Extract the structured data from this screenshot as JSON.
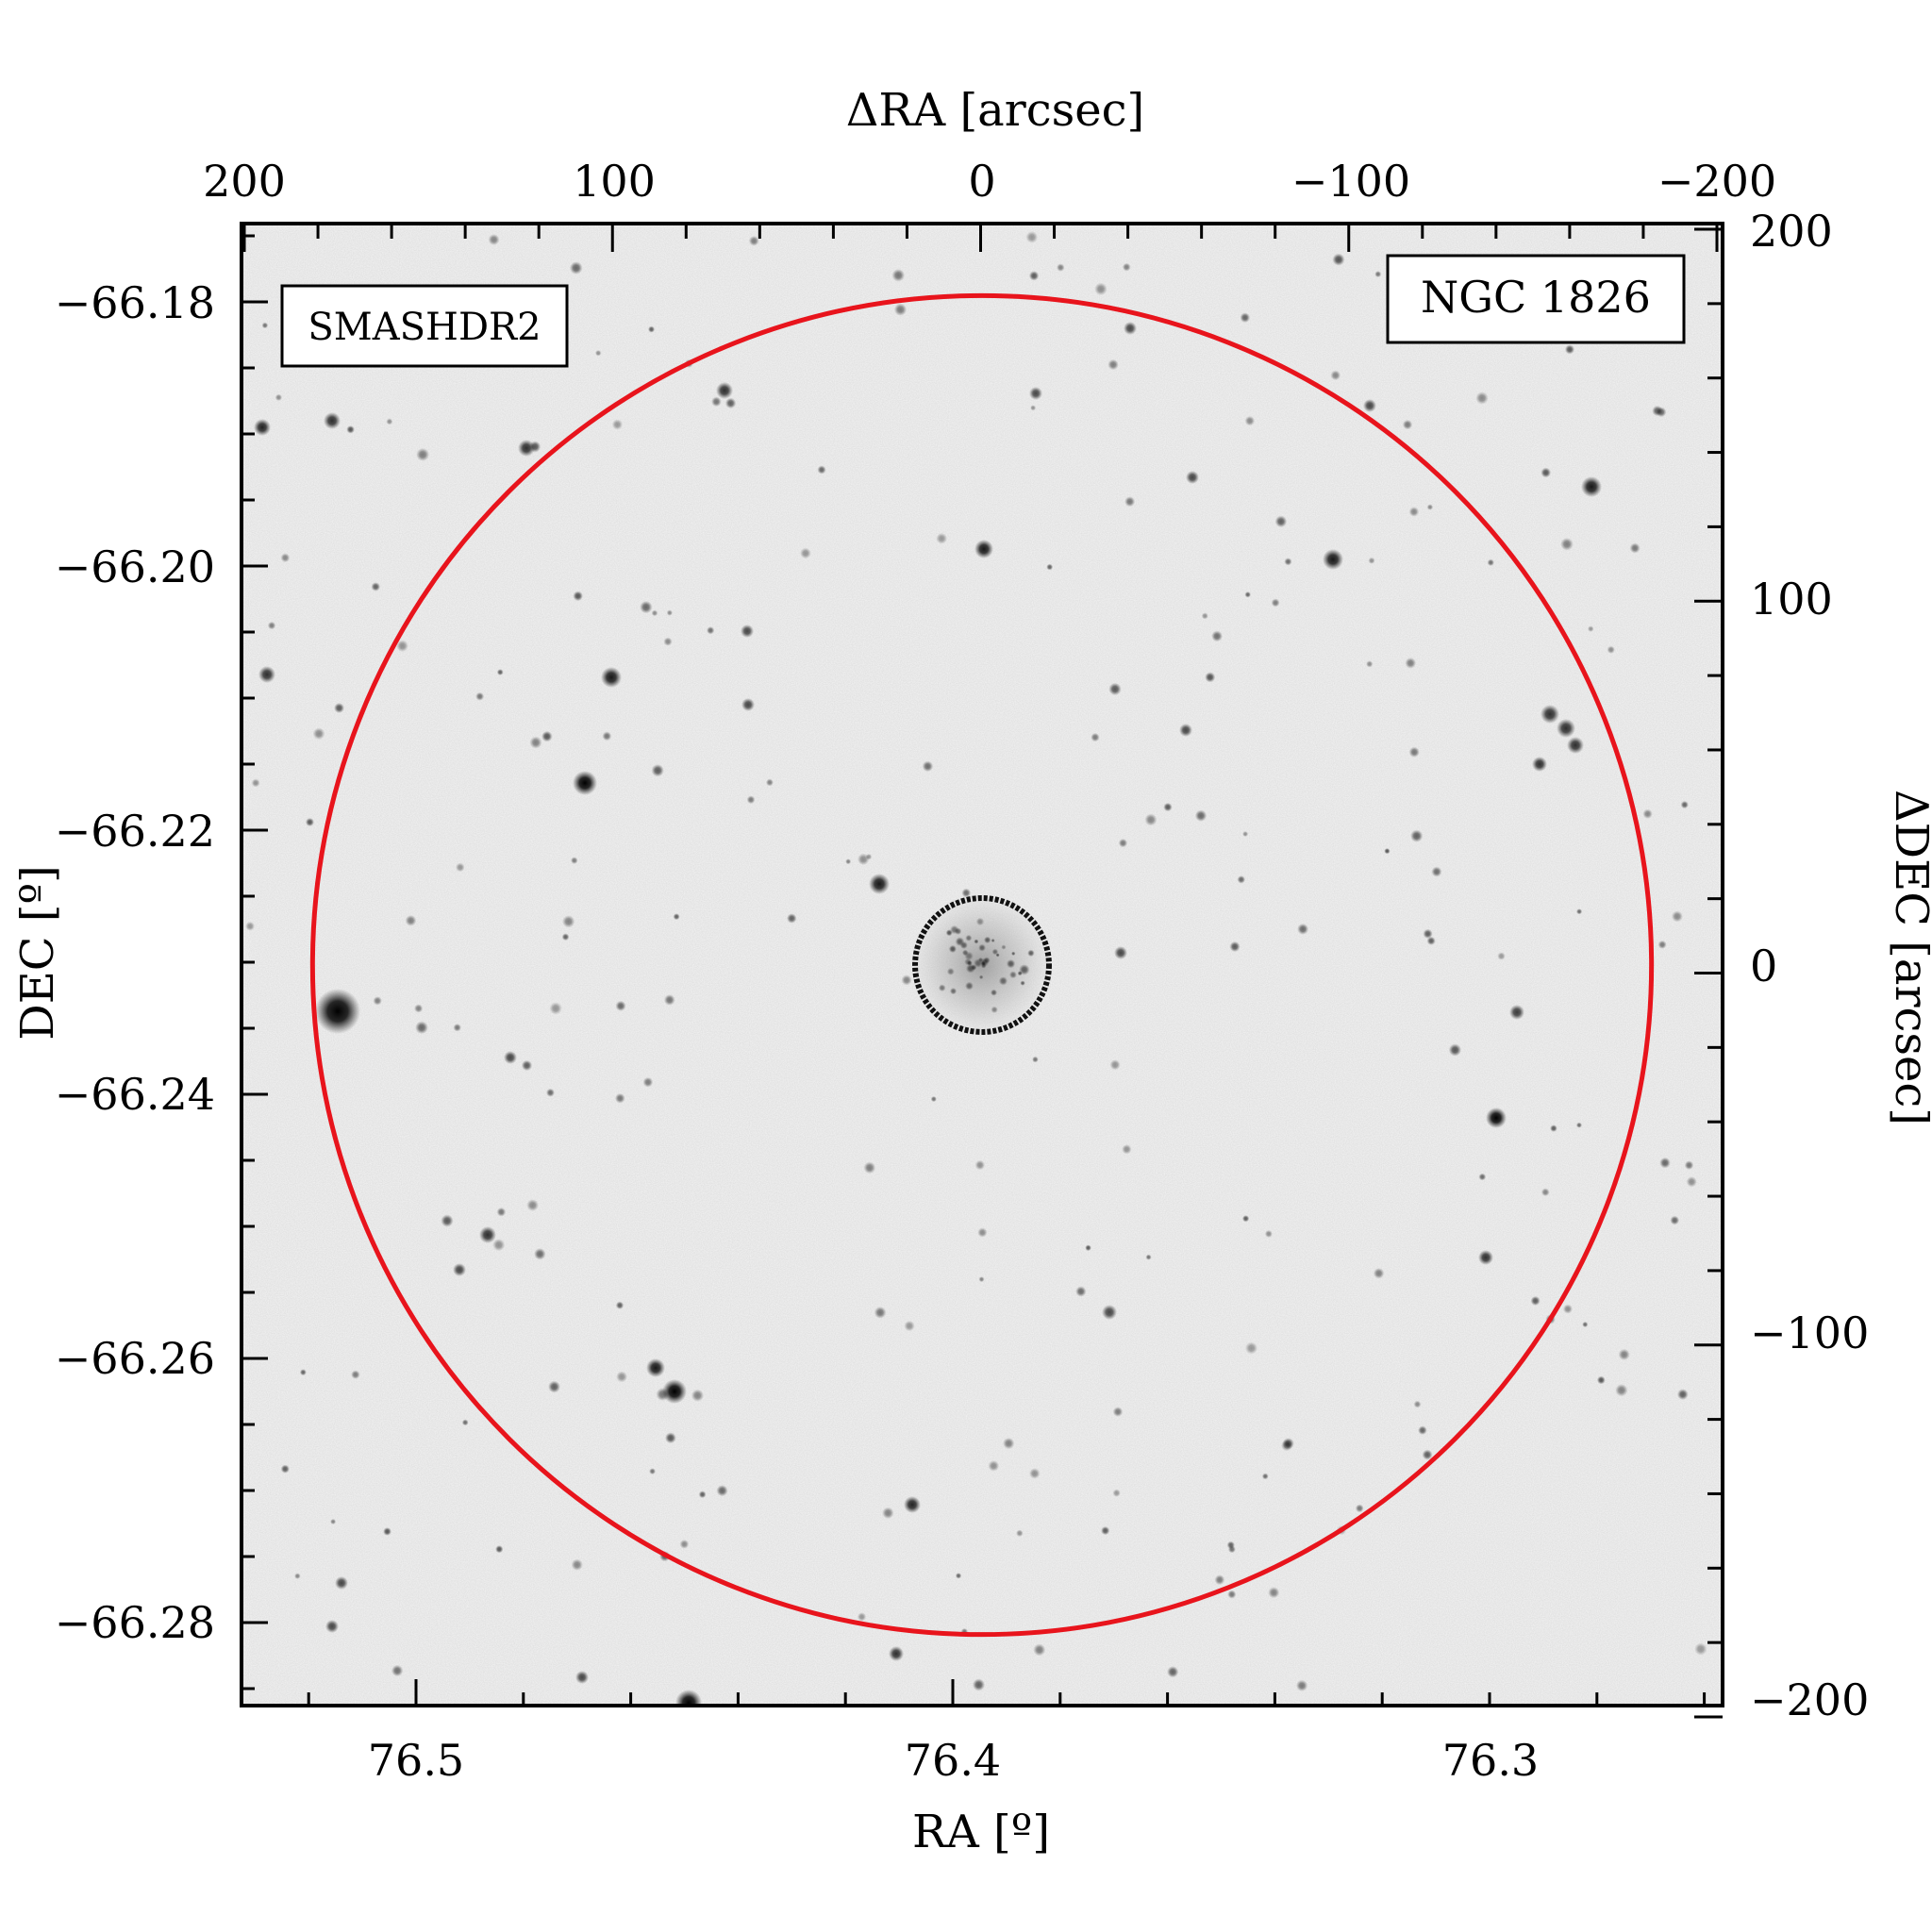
{
  "figure": {
    "survey_label": "SMASHDR2",
    "object_label": "NGC 1826",
    "colors": {
      "survey_label": "#e8141c",
      "outer_circle": "#e8141c",
      "inner_circle": "#111111",
      "frame": "#000000",
      "sky_background": "#f4f4f4"
    }
  },
  "axes": {
    "bottom": {
      "label": "RA [º]",
      "ticks": [
        {
          "value": 76.5,
          "text": "76.5"
        },
        {
          "value": 76.4,
          "text": "76.4"
        },
        {
          "value": 76.3,
          "text": "76.3"
        }
      ]
    },
    "left": {
      "label": "DEC [º]",
      "ticks": [
        {
          "value": -66.18,
          "text": "−66.18"
        },
        {
          "value": -66.2,
          "text": "−66.20"
        },
        {
          "value": -66.22,
          "text": "−66.22"
        },
        {
          "value": -66.24,
          "text": "−66.24"
        },
        {
          "value": -66.26,
          "text": "−66.26"
        },
        {
          "value": -66.28,
          "text": "−66.28"
        }
      ]
    },
    "top": {
      "label": "ΔRA [arcsec]",
      "range": [
        200,
        -200
      ],
      "ticks": [
        {
          "value": 200,
          "text": "200"
        },
        {
          "value": 100,
          "text": "100"
        },
        {
          "value": 0,
          "text": "0"
        },
        {
          "value": -100,
          "text": "−100"
        },
        {
          "value": -200,
          "text": "−200"
        }
      ]
    },
    "right": {
      "label": "ΔDEC [arcsec]",
      "range": [
        -200,
        200
      ],
      "ticks": [
        {
          "value": 200,
          "text": "200"
        },
        {
          "value": 100,
          "text": "100"
        },
        {
          "value": 0,
          "text": "0"
        },
        {
          "value": -100,
          "text": "−100"
        },
        {
          "value": -200,
          "text": "−200"
        }
      ]
    }
  },
  "regions": {
    "outer_radius_arcsec": 180,
    "inner_radius_arcsec": 18
  }
}
